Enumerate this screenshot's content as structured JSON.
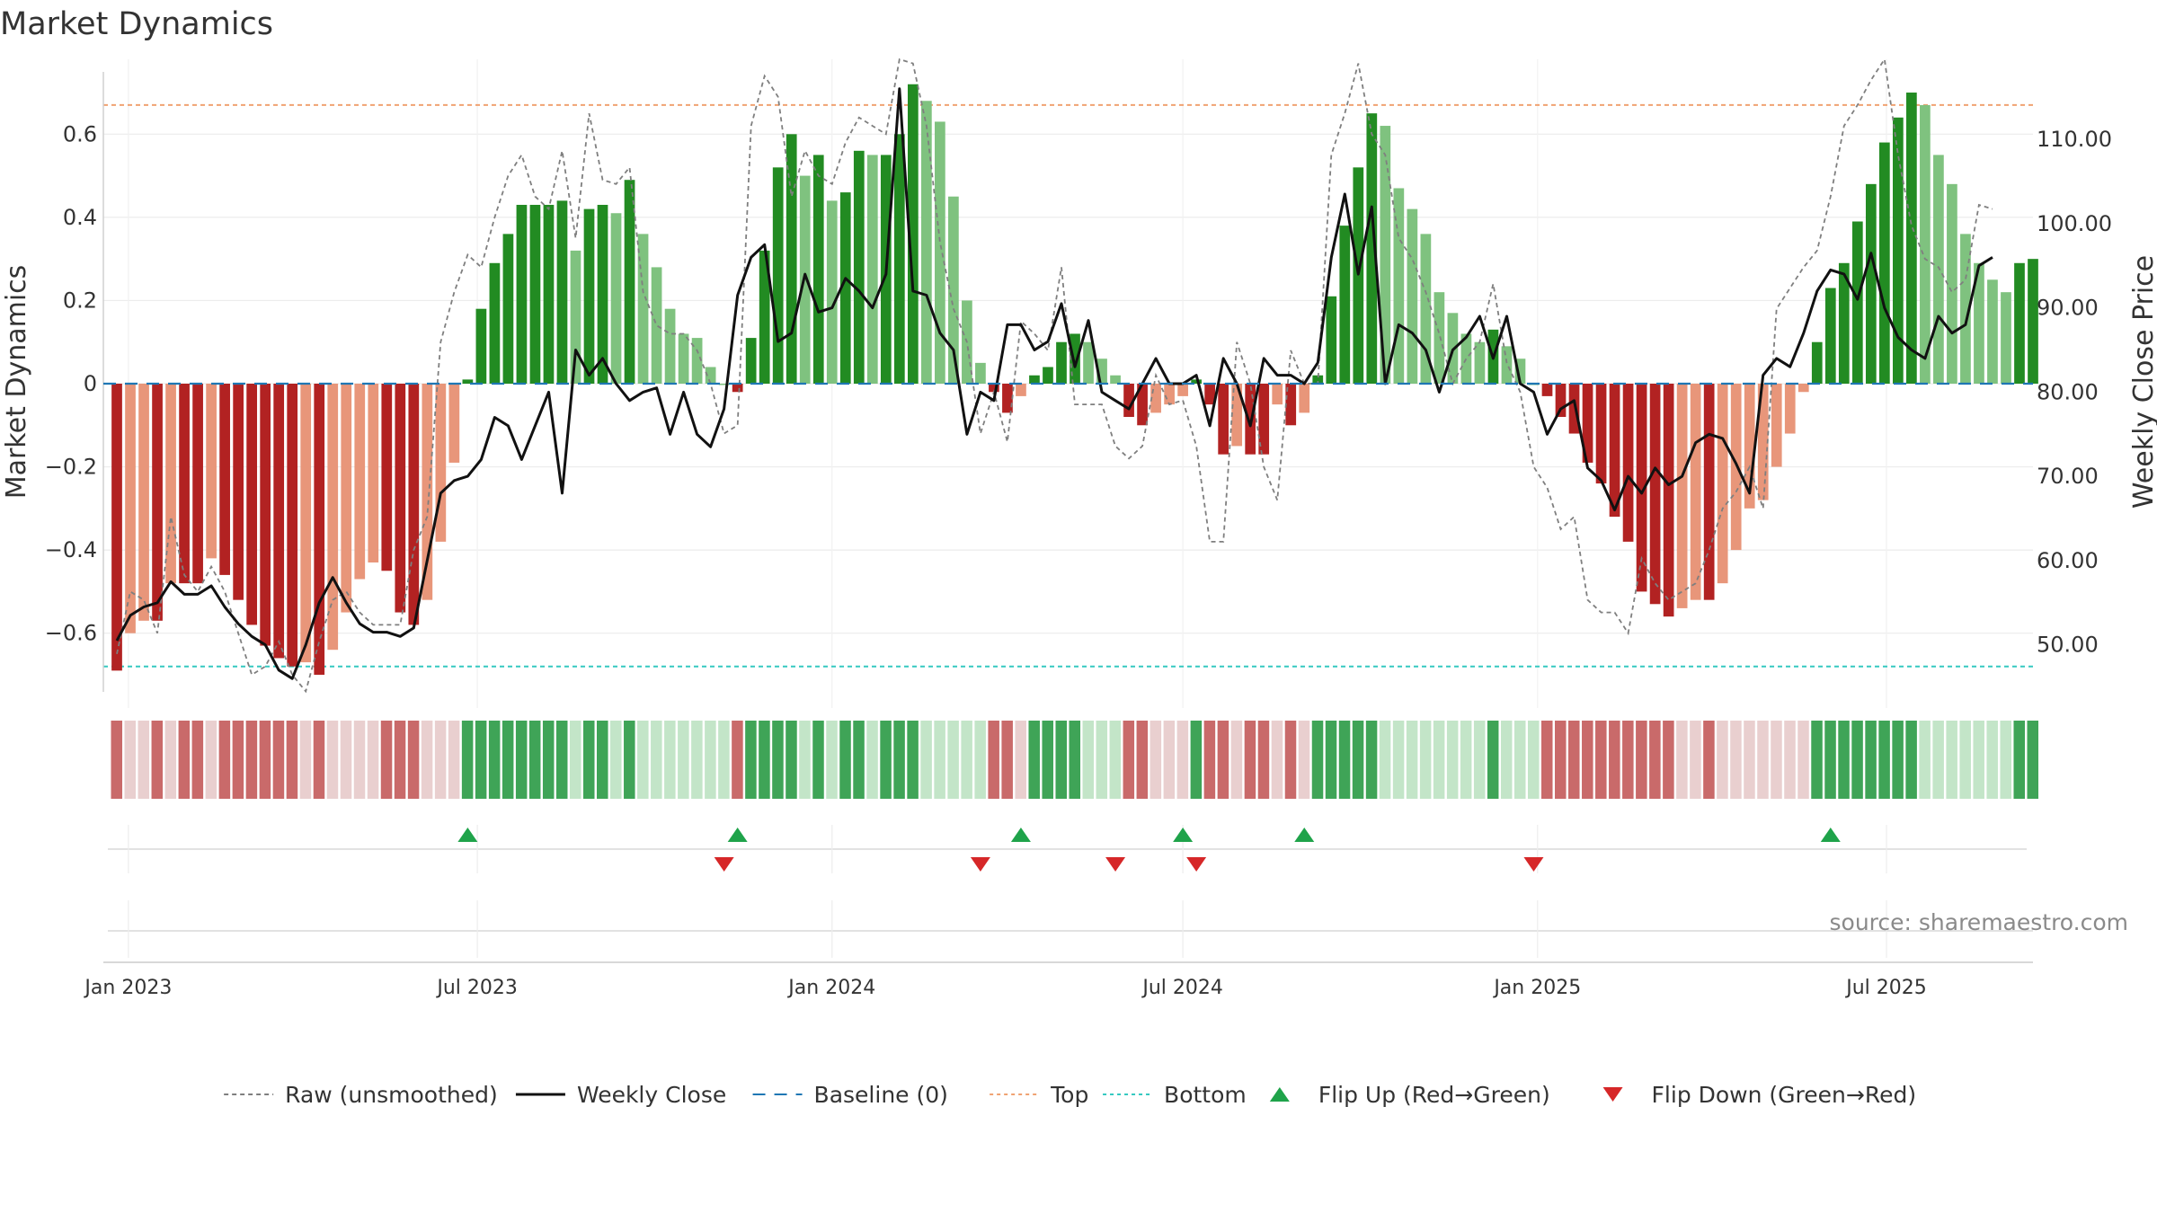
{
  "chart_data": {
    "type": "bar",
    "title": "Market Dynamics",
    "ylabel_left": "Market Dynamics",
    "ylabel_right": "Weekly Close Price",
    "left_ylim": [
      -0.78,
      0.78
    ],
    "right_ylim": [
      42.5,
      119.5
    ],
    "left_ticks": [
      0.6,
      0.4,
      0.2,
      0,
      -0.2,
      -0.4,
      -0.6
    ],
    "left_tick_labels": [
      "0.6",
      "0.4",
      "0.2",
      "0",
      "−0.2",
      "−0.4",
      "−0.6"
    ],
    "right_ticks": [
      110,
      100,
      90,
      80,
      70,
      60,
      50
    ],
    "right_tick_labels": [
      "110.00",
      "100.00",
      "90.00",
      "80.00",
      "70.00",
      "60.00",
      "50.00"
    ],
    "x_start": "2022-12-19",
    "x_end": "2025-09-15",
    "week_start": "2022-12-26",
    "x_ticks": [
      "2023-01-01",
      "2023-07-01",
      "2024-01-01",
      "2024-07-01",
      "2025-01-01",
      "2025-07-01"
    ],
    "x_tick_labels": [
      "Jan 2023",
      "Jul 2023",
      "Jan 2024",
      "Jul 2024",
      "Jan 2025",
      "Jul 2025"
    ],
    "top_line": 0.67,
    "bottom_line": -0.68,
    "baseline": 0,
    "grid": true,
    "legend_position": "bottom-center",
    "series": [
      {
        "name": "Market Dynamics",
        "values": [
          -0.69,
          -0.6,
          -0.57,
          -0.57,
          -0.48,
          -0.48,
          -0.48,
          -0.42,
          -0.46,
          -0.52,
          -0.58,
          -0.63,
          -0.66,
          -0.68,
          -0.67,
          -0.7,
          -0.64,
          -0.55,
          -0.47,
          -0.43,
          -0.45,
          -0.55,
          -0.58,
          -0.52,
          -0.38,
          -0.19,
          0.01,
          0.18,
          0.29,
          0.36,
          0.43,
          0.43,
          0.43,
          0.44,
          0.32,
          0.42,
          0.43,
          0.41,
          0.49,
          0.36,
          0.28,
          0.18,
          0.12,
          0.11,
          0.04,
          0.0,
          -0.02,
          0.11,
          0.32,
          0.52,
          0.6,
          0.5,
          0.55,
          0.44,
          0.46,
          0.56,
          0.55,
          0.55,
          0.6,
          0.72,
          0.68,
          0.63,
          0.45,
          0.2,
          0.05,
          -0.02,
          -0.07,
          -0.03,
          0.02,
          0.04,
          0.1,
          0.12,
          0.1,
          0.06,
          0.02,
          -0.08,
          -0.1,
          -0.07,
          -0.05,
          -0.03,
          0.01,
          -0.05,
          -0.17,
          -0.15,
          -0.17,
          -0.17,
          -0.05,
          -0.1,
          -0.07,
          0.02,
          0.21,
          0.38,
          0.52,
          0.65,
          0.62,
          0.47,
          0.42,
          0.36,
          0.22,
          0.17,
          0.12,
          0.1,
          0.13,
          0.09,
          0.06,
          0.0,
          -0.03,
          -0.08,
          -0.12,
          -0.19,
          -0.24,
          -0.32,
          -0.38,
          -0.5,
          -0.53,
          -0.56,
          -0.54,
          -0.52,
          -0.52,
          -0.48,
          -0.4,
          -0.3,
          -0.28,
          -0.2,
          -0.12,
          -0.02,
          0.1,
          0.23,
          0.29,
          0.39,
          0.48,
          0.58,
          0.64,
          0.7,
          0.67,
          0.55,
          0.48,
          0.36,
          0.29,
          0.25,
          0.22,
          0.29,
          0.3
        ],
        "colors": {
          "pos_strong": "#228b22",
          "pos_weak": "#7fc27f",
          "neg_strong": "#b22222",
          "neg_weak": "#e8967a"
        }
      },
      {
        "name": "Raw (unsmoothed)",
        "axis": "left",
        "values": [
          -0.65,
          -0.5,
          -0.52,
          -0.6,
          -0.32,
          -0.46,
          -0.5,
          -0.44,
          -0.5,
          -0.6,
          -0.7,
          -0.68,
          -0.62,
          -0.7,
          -0.74,
          -0.62,
          -0.52,
          -0.5,
          -0.55,
          -0.58,
          -0.58,
          -0.58,
          -0.4,
          -0.32,
          0.1,
          0.22,
          0.31,
          0.28,
          0.4,
          0.5,
          0.55,
          0.45,
          0.42,
          0.56,
          0.35,
          0.65,
          0.49,
          0.48,
          0.52,
          0.22,
          0.14,
          0.12,
          0.12,
          0.08,
          0.0,
          -0.12,
          -0.1,
          0.62,
          0.74,
          0.69,
          0.45,
          0.56,
          0.5,
          0.48,
          0.58,
          0.64,
          0.62,
          0.6,
          0.78,
          0.77,
          0.62,
          0.34,
          0.18,
          0.1,
          -0.12,
          -0.02,
          -0.14,
          0.15,
          0.12,
          0.08,
          0.28,
          -0.05,
          -0.05,
          -0.05,
          -0.15,
          -0.18,
          -0.15,
          0.02,
          -0.05,
          -0.04,
          -0.15,
          -0.38,
          -0.38,
          0.1,
          0.0,
          -0.2,
          -0.28,
          0.08,
          0.0,
          0.0,
          0.55,
          0.65,
          0.77,
          0.6,
          0.55,
          0.35,
          0.3,
          0.22,
          0.12,
          0.0,
          0.06,
          0.1,
          0.24,
          0.05,
          -0.02,
          -0.2,
          -0.25,
          -0.35,
          -0.32,
          -0.52,
          -0.55,
          -0.55,
          -0.6,
          -0.42,
          -0.48,
          -0.52,
          -0.5,
          -0.48,
          -0.4,
          -0.3,
          -0.26,
          -0.2,
          -0.3,
          0.18,
          0.23,
          0.28,
          0.32,
          0.45,
          0.62,
          0.67,
          0.73,
          0.78,
          0.55,
          0.38,
          0.3,
          0.28,
          0.22,
          0.25,
          0.43,
          0.42
        ]
      },
      {
        "name": "Weekly Close",
        "axis": "right",
        "values": [
          50.5,
          53.5,
          54.5,
          55,
          57.5,
          56,
          56,
          57,
          54.5,
          52.5,
          51,
          50,
          47,
          46,
          50,
          55,
          58,
          55,
          52.5,
          51.5,
          51.5,
          51,
          52,
          60,
          68,
          69.5,
          70,
          72,
          77,
          76,
          72,
          76,
          80,
          68,
          85,
          82,
          84,
          81,
          79,
          80,
          80.5,
          75,
          80,
          75,
          73.5,
          78,
          91.5,
          96,
          97.5,
          86,
          87,
          94,
          89.5,
          90,
          93.5,
          92,
          90,
          94,
          116,
          92,
          91.5,
          87,
          85,
          75,
          80,
          79,
          88,
          88,
          85,
          86,
          90.5,
          83,
          88.5,
          80,
          79,
          78,
          81,
          84,
          81,
          81,
          82,
          76,
          84,
          81,
          76,
          84,
          82,
          82,
          81,
          83.5,
          96,
          103.5,
          94,
          102,
          81,
          88,
          87,
          85,
          80,
          85,
          86.5,
          89,
          84,
          89,
          81,
          80,
          75,
          78,
          79,
          71,
          69.5,
          66,
          70,
          68,
          71,
          69,
          70,
          74,
          75,
          74.5,
          71.5,
          68,
          82,
          84,
          83,
          87,
          92,
          94.5,
          94,
          91,
          96.5,
          90,
          86.5,
          85,
          84,
          89,
          87,
          88,
          95,
          96
        ]
      }
    ],
    "flip_up_weeks": [
      26,
      46,
      67,
      79,
      88,
      127
    ],
    "flip_down_weeks": [
      45,
      64,
      74,
      80,
      105
    ],
    "regime_strip": {
      "colors": {
        "red_strong": "#c96a6a",
        "red_weak": "#e9cfcf",
        "green_strong": "#3fa457",
        "green_weak": "#c3e5c8"
      }
    },
    "source": "source: sharemaestro.com",
    "legend": [
      {
        "label": "Raw (unsmoothed)",
        "style": "dashed",
        "color": "#7f7f7f"
      },
      {
        "label": "Weekly Close",
        "style": "solid",
        "color": "#111111"
      },
      {
        "label": "Baseline (0)",
        "style": "long-dash",
        "color": "#1f77b4"
      },
      {
        "label": "Top",
        "style": "dotted",
        "color": "#f0a272"
      },
      {
        "label": "Bottom",
        "style": "dotted",
        "color": "#35c9c1"
      },
      {
        "label": "Flip Up (Red→Green)",
        "style": "triangle-up",
        "color": "#1fa34a"
      },
      {
        "label": "Flip Down (Green→Red)",
        "style": "triangle-down",
        "color": "#d62728"
      }
    ]
  }
}
